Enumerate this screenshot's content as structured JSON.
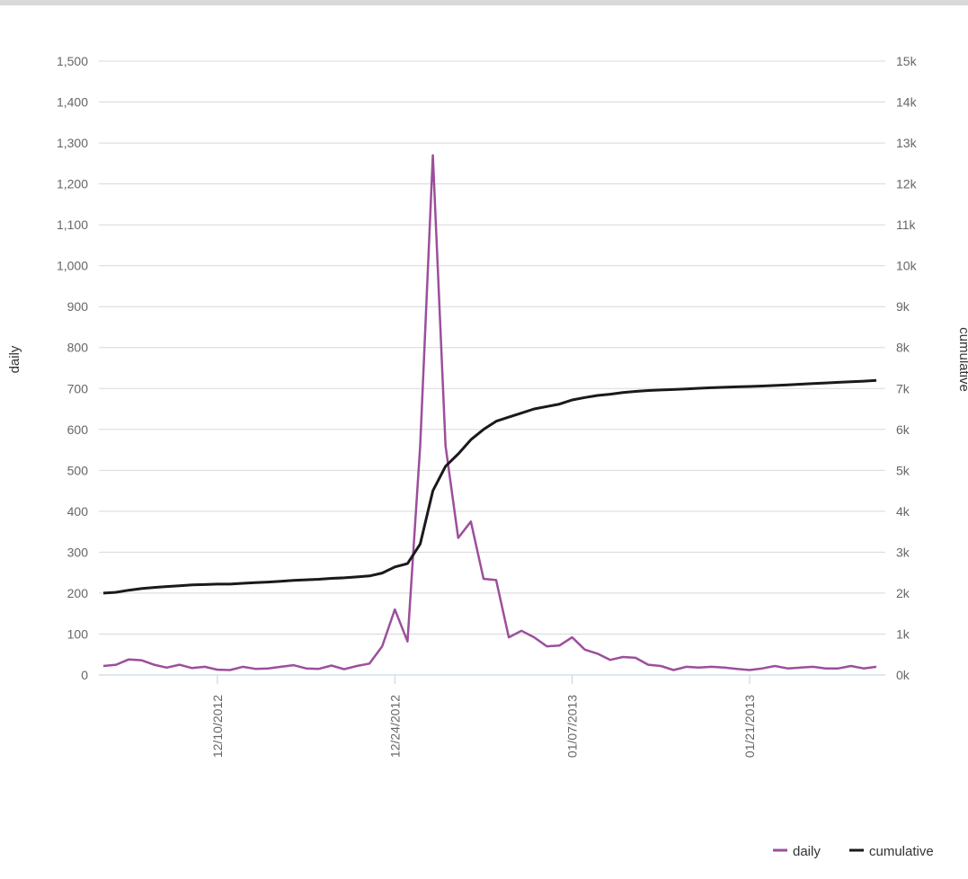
{
  "chart_data": {
    "type": "line",
    "x_start": "2012-12-01",
    "x_tick_labels": [
      "12/10/2012",
      "12/24/2012",
      "01/07/2013",
      "01/21/2013"
    ],
    "x_tick_dates": [
      "2012-12-10",
      "2012-12-24",
      "2013-01-07",
      "2013-01-21"
    ],
    "left_axis": {
      "label": "daily",
      "ylim": [
        0,
        1500
      ],
      "tick_labels": [
        "0",
        "100",
        "200",
        "300",
        "400",
        "500",
        "600",
        "700",
        "800",
        "900",
        "1,000",
        "1,100",
        "1,200",
        "1,300",
        "1,400",
        "1,500"
      ]
    },
    "right_axis": {
      "label": "cumulative",
      "ylim": [
        0,
        15000
      ],
      "tick_labels": [
        "0k",
        "1k",
        "2k",
        "3k",
        "4k",
        "5k",
        "6k",
        "7k",
        "8k",
        "9k",
        "10k",
        "11k",
        "12k",
        "13k",
        "14k",
        "15k"
      ]
    },
    "grid": true,
    "legend_position": "bottom-right",
    "series": [
      {
        "name": "daily",
        "axis": "left",
        "color": "#9b4f9b",
        "values": [
          22,
          25,
          38,
          36,
          25,
          18,
          25,
          17,
          20,
          13,
          12,
          20,
          15,
          16,
          20,
          24,
          16,
          15,
          23,
          14,
          22,
          28,
          70,
          160,
          82,
          560,
          1270,
          560,
          335,
          375,
          235,
          232,
          92,
          108,
          92,
          70,
          72,
          92,
          62,
          52,
          37,
          44,
          42,
          25,
          22,
          12,
          20,
          18,
          20,
          18,
          15,
          12,
          16,
          22,
          16,
          18,
          20,
          16,
          16,
          22,
          16,
          20
        ]
      },
      {
        "name": "cumulative",
        "axis": "right",
        "color": "#1a1a1a",
        "values": [
          2000,
          2020,
          2070,
          2110,
          2140,
          2160,
          2180,
          2200,
          2210,
          2220,
          2220,
          2240,
          2255,
          2270,
          2290,
          2310,
          2325,
          2340,
          2360,
          2375,
          2395,
          2420,
          2490,
          2640,
          2720,
          3200,
          4500,
          5100,
          5400,
          5750,
          6000,
          6200,
          6300,
          6400,
          6500,
          6560,
          6620,
          6720,
          6780,
          6830,
          6860,
          6900,
          6930,
          6950,
          6965,
          6975,
          6990,
          7005,
          7020,
          7030,
          7040,
          7050,
          7060,
          7075,
          7090,
          7105,
          7120,
          7135,
          7150,
          7165,
          7180,
          7200
        ]
      }
    ]
  }
}
